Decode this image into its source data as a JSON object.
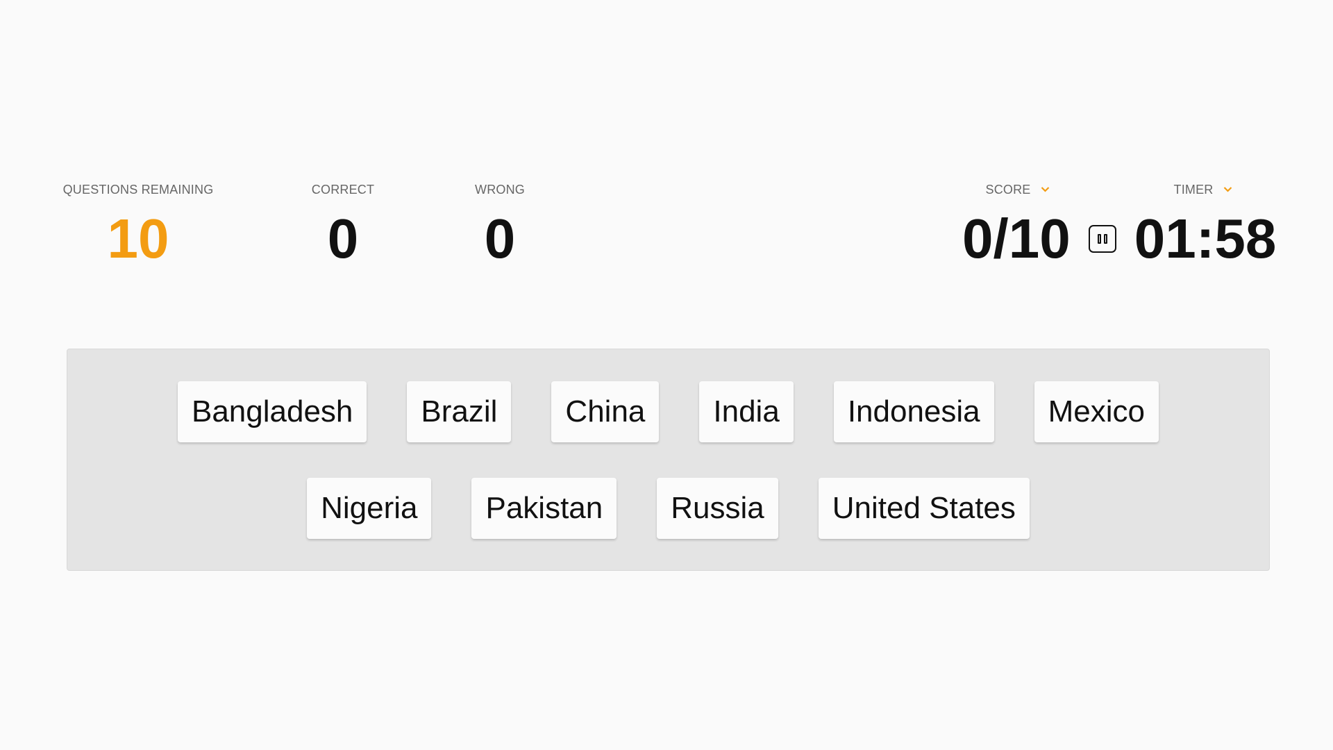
{
  "stats": {
    "questions_remaining": {
      "label": "QUESTIONS REMAINING",
      "value": "10"
    },
    "correct": {
      "label": "CORRECT",
      "value": "0"
    },
    "wrong": {
      "label": "WRONG",
      "value": "0"
    },
    "score": {
      "label": "SCORE",
      "value": "0/10"
    },
    "timer": {
      "label": "TIMER",
      "value": "01:58"
    }
  },
  "colors": {
    "accent": "#f39c12",
    "panel": "#e4e4e4",
    "background": "#fafafa"
  },
  "icons": {
    "pause": "pause-icon",
    "dropdown": "chevron-down-icon"
  },
  "answers": [
    "Bangladesh",
    "Brazil",
    "China",
    "India",
    "Indonesia",
    "Mexico",
    "Nigeria",
    "Pakistan",
    "Russia",
    "United States"
  ]
}
